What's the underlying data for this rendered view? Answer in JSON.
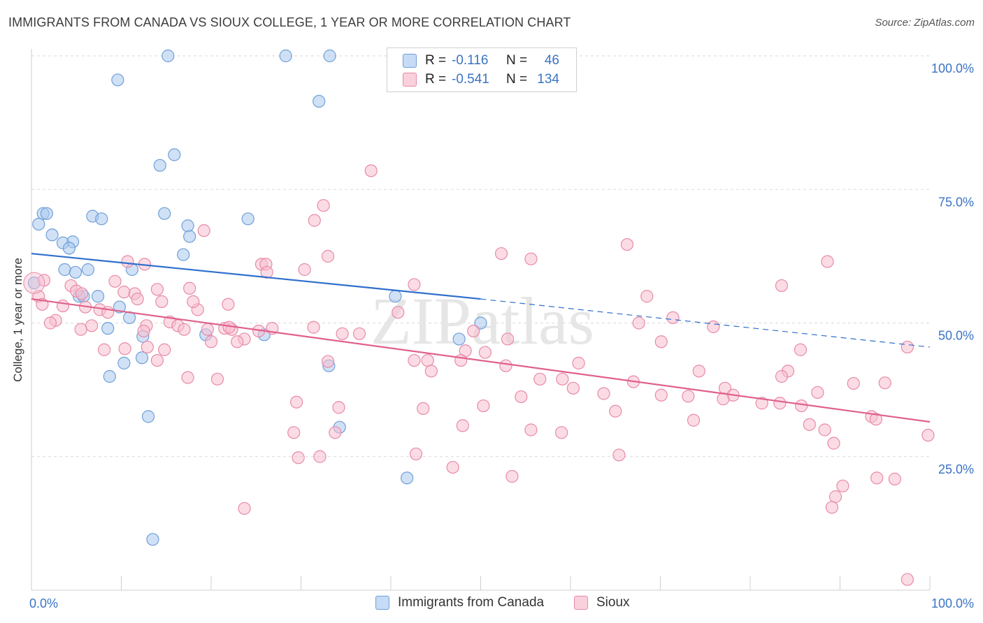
{
  "title": "IMMIGRANTS FROM CANADA VS SIOUX COLLEGE, 1 YEAR OR MORE CORRELATION CHART",
  "source": "Source: ZipAtlas.com",
  "watermark": "ZIPatlas",
  "colors": {
    "blue_fill": "#a9c8ee",
    "blue_stroke": "#6f9fd8",
    "blue_line": "#2f6fcd",
    "pink_fill": "#f7bfd0",
    "pink_stroke": "#e88aa8",
    "pink_line": "#e0608c",
    "axis_text": "#3b73c4",
    "grid": "#d9d9d9"
  },
  "legend": {
    "rows": [
      {
        "r_label": "R =",
        "r_value": "-0.116",
        "n_label": "N =",
        "n_value": "46"
      },
      {
        "r_label": "R =",
        "r_value": "-0.541",
        "n_label": "N =",
        "n_value": "134"
      }
    ]
  },
  "bottom_legend": [
    "Immigrants from Canada",
    "Sioux"
  ],
  "chart_data": {
    "type": "scatter",
    "title": "IMMIGRANTS FROM CANADA VS SIOUX COLLEGE, 1 YEAR OR MORE CORRELATION CHART",
    "xlabel": "",
    "ylabel": "College, 1 year or more",
    "xlim": [
      0,
      100
    ],
    "ylim": [
      0,
      102
    ],
    "x_tick_labels": [
      "0.0%",
      "100.0%"
    ],
    "y_tick_labels": [
      "25.0%",
      "50.0%",
      "75.0%",
      "100.0%"
    ],
    "y_ticks": [
      25,
      50,
      75,
      100
    ],
    "grid": true,
    "legend_position": "top-center",
    "series": [
      {
        "name": "Immigrants from Canada",
        "color": "#a9c8ee",
        "trend": {
          "x": [
            0,
            50
          ],
          "y": [
            63.0,
            54.5
          ],
          "dashed_to": [
            100,
            45.5
          ]
        },
        "points": [
          [
            15.2,
            100
          ],
          [
            28.3,
            100
          ],
          [
            33.2,
            100
          ],
          [
            9.6,
            95.5
          ],
          [
            32.0,
            91.5
          ],
          [
            15.9,
            81.5
          ],
          [
            14.3,
            79.5
          ],
          [
            1.3,
            70.5
          ],
          [
            1.7,
            70.5
          ],
          [
            6.8,
            70.0
          ],
          [
            7.8,
            69.5
          ],
          [
            14.8,
            70.5
          ],
          [
            24.1,
            69.5
          ],
          [
            0.8,
            68.5
          ],
          [
            17.4,
            68.2
          ],
          [
            2.3,
            66.5
          ],
          [
            17.6,
            66.2
          ],
          [
            4.6,
            65.2
          ],
          [
            3.5,
            65.0
          ],
          [
            4.2,
            64.0
          ],
          [
            16.9,
            62.8
          ],
          [
            3.7,
            60.0
          ],
          [
            6.3,
            60.0
          ],
          [
            11.2,
            60.0
          ],
          [
            4.9,
            59.5
          ],
          [
            0.3,
            57.5
          ],
          [
            5.3,
            55.0
          ],
          [
            7.4,
            55.0
          ],
          [
            5.8,
            55.0
          ],
          [
            9.8,
            53.0
          ],
          [
            40.5,
            55.0
          ],
          [
            10.9,
            51.0
          ],
          [
            50.0,
            50.0
          ],
          [
            8.5,
            49.0
          ],
          [
            12.4,
            47.5
          ],
          [
            25.9,
            47.8
          ],
          [
            47.6,
            47.0
          ],
          [
            10.3,
            42.5
          ],
          [
            12.3,
            43.5
          ],
          [
            33.1,
            42.0
          ],
          [
            8.7,
            40.0
          ],
          [
            13.0,
            32.5
          ],
          [
            34.3,
            30.5
          ],
          [
            41.8,
            21.0
          ],
          [
            13.5,
            9.5
          ],
          [
            19.4,
            47.8
          ]
        ]
      },
      {
        "name": "Sioux",
        "color": "#f7bfd0",
        "trend": {
          "x": [
            0,
            100
          ],
          "y": [
            54.5,
            31.5
          ]
        },
        "points": [
          [
            37.8,
            78.5
          ],
          [
            32.5,
            72.0
          ],
          [
            31.5,
            69.2
          ],
          [
            19.2,
            67.3
          ],
          [
            66.3,
            64.7
          ],
          [
            52.3,
            63.0
          ],
          [
            33.0,
            62.5
          ],
          [
            55.6,
            62.0
          ],
          [
            88.6,
            61.5
          ],
          [
            10.7,
            61.5
          ],
          [
            25.6,
            61.0
          ],
          [
            12.6,
            61.0
          ],
          [
            26.1,
            61.0
          ],
          [
            30.4,
            60.0
          ],
          [
            26.2,
            59.5
          ],
          [
            9.3,
            57.8
          ],
          [
            1.4,
            58.0
          ],
          [
            4.4,
            57.0
          ],
          [
            42.6,
            57.2
          ],
          [
            83.5,
            57.0
          ],
          [
            5.0,
            56.0
          ],
          [
            17.6,
            56.5
          ],
          [
            14.0,
            56.3
          ],
          [
            10.3,
            55.8
          ],
          [
            11.5,
            55.5
          ],
          [
            0.8,
            55.0
          ],
          [
            5.6,
            55.5
          ],
          [
            68.5,
            55.0
          ],
          [
            11.8,
            54.5
          ],
          [
            14.5,
            54.0
          ],
          [
            21.9,
            53.5
          ],
          [
            1.2,
            53.5
          ],
          [
            3.5,
            53.2
          ],
          [
            6.0,
            53.0
          ],
          [
            7.6,
            52.5
          ],
          [
            8.5,
            52.0
          ],
          [
            18.5,
            52.5
          ],
          [
            40.8,
            52.0
          ],
          [
            71.4,
            51.0
          ],
          [
            2.7,
            50.5
          ],
          [
            15.4,
            50.2
          ],
          [
            2.1,
            50.0
          ],
          [
            67.6,
            50.0
          ],
          [
            6.7,
            49.5
          ],
          [
            12.8,
            49.5
          ],
          [
            16.3,
            49.5
          ],
          [
            31.4,
            49.2
          ],
          [
            21.5,
            49.0
          ],
          [
            26.8,
            49.0
          ],
          [
            75.9,
            49.3
          ],
          [
            17.0,
            48.8
          ],
          [
            19.6,
            48.8
          ],
          [
            5.5,
            48.8
          ],
          [
            22.3,
            48.8
          ],
          [
            22.0,
            49.2
          ],
          [
            25.3,
            48.5
          ],
          [
            34.6,
            48.0
          ],
          [
            49.2,
            48.5
          ],
          [
            53.0,
            47.0
          ],
          [
            23.7,
            47.0
          ],
          [
            20.0,
            46.5
          ],
          [
            22.9,
            46.5
          ],
          [
            70.1,
            46.5
          ],
          [
            8.1,
            45.0
          ],
          [
            10.4,
            45.2
          ],
          [
            12.9,
            45.5
          ],
          [
            14.8,
            45.0
          ],
          [
            48.3,
            44.8
          ],
          [
            50.5,
            44.5
          ],
          [
            85.6,
            45.0
          ],
          [
            97.5,
            45.5
          ],
          [
            14.0,
            43.0
          ],
          [
            33.0,
            42.8
          ],
          [
            44.1,
            43.0
          ],
          [
            47.8,
            43.0
          ],
          [
            52.8,
            42.0
          ],
          [
            60.9,
            42.5
          ],
          [
            44.5,
            41.0
          ],
          [
            74.3,
            41.0
          ],
          [
            84.2,
            41.0
          ],
          [
            56.6,
            39.5
          ],
          [
            59.1,
            39.5
          ],
          [
            67.0,
            39.0
          ],
          [
            83.5,
            40.0
          ],
          [
            95.0,
            38.8
          ],
          [
            17.4,
            39.8
          ],
          [
            20.7,
            39.5
          ],
          [
            91.5,
            38.7
          ],
          [
            77.2,
            37.8
          ],
          [
            78.1,
            36.5
          ],
          [
            87.5,
            37.0
          ],
          [
            60.3,
            37.8
          ],
          [
            63.7,
            36.8
          ],
          [
            54.5,
            36.2
          ],
          [
            70.1,
            36.5
          ],
          [
            73.1,
            36.3
          ],
          [
            77.0,
            35.8
          ],
          [
            81.3,
            35.0
          ],
          [
            83.3,
            35.0
          ],
          [
            85.7,
            34.5
          ],
          [
            29.5,
            35.2
          ],
          [
            34.2,
            34.2
          ],
          [
            43.6,
            34.0
          ],
          [
            50.3,
            34.5
          ],
          [
            65.0,
            33.5
          ],
          [
            73.7,
            31.8
          ],
          [
            93.5,
            32.5
          ],
          [
            94.0,
            32.0
          ],
          [
            86.6,
            31.0
          ],
          [
            88.3,
            30.0
          ],
          [
            48.0,
            30.8
          ],
          [
            55.6,
            30.0
          ],
          [
            59.0,
            29.5
          ],
          [
            33.8,
            29.5
          ],
          [
            29.2,
            29.5
          ],
          [
            99.8,
            29.0
          ],
          [
            89.3,
            27.5
          ],
          [
            42.8,
            25.5
          ],
          [
            32.1,
            25.0
          ],
          [
            65.4,
            25.3
          ],
          [
            29.7,
            24.8
          ],
          [
            46.9,
            23.0
          ],
          [
            53.5,
            21.3
          ],
          [
            94.1,
            21.0
          ],
          [
            96.1,
            20.8
          ],
          [
            90.3,
            19.5
          ],
          [
            89.5,
            17.5
          ],
          [
            89.1,
            15.5
          ],
          [
            23.7,
            15.3
          ],
          [
            97.5,
            2.0
          ],
          [
            12.5,
            48.5
          ],
          [
            18.0,
            54.0
          ],
          [
            42.6,
            43.0
          ],
          [
            36.5,
            48.0
          ]
        ]
      }
    ]
  }
}
